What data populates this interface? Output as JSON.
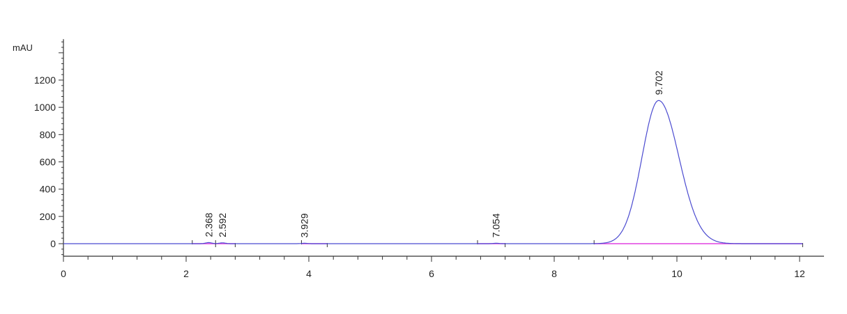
{
  "chart_data": {
    "type": "line",
    "title": "",
    "xlabel": "",
    "ylabel": "mAU",
    "xlim": [
      0,
      12.4
    ],
    "ylim": [
      -90,
      1500
    ],
    "x_ticks": [
      0,
      2,
      4,
      6,
      8,
      10,
      12
    ],
    "y_ticks": [
      0,
      200,
      400,
      600,
      800,
      1000,
      1200
    ],
    "grid": false,
    "colors": {
      "signal": "#4b4bd0",
      "baseline": "#e040e0",
      "axis": "#333333"
    },
    "peaks": [
      {
        "label": "2.368",
        "rt": 2.368,
        "height": 8
      },
      {
        "label": "2.592",
        "rt": 2.592,
        "height": 6
      },
      {
        "label": "3.929",
        "rt": 3.929,
        "height": 3
      },
      {
        "label": "7.054",
        "rt": 7.054,
        "height": 3
      },
      {
        "label": "9.702",
        "rt": 9.702,
        "height": 1050
      }
    ],
    "integration_segments": [
      [
        2.1,
        2.48
      ],
      [
        2.48,
        2.8
      ],
      [
        3.88,
        4.3
      ],
      [
        6.75,
        7.2
      ],
      [
        8.65,
        12.05
      ]
    ]
  }
}
